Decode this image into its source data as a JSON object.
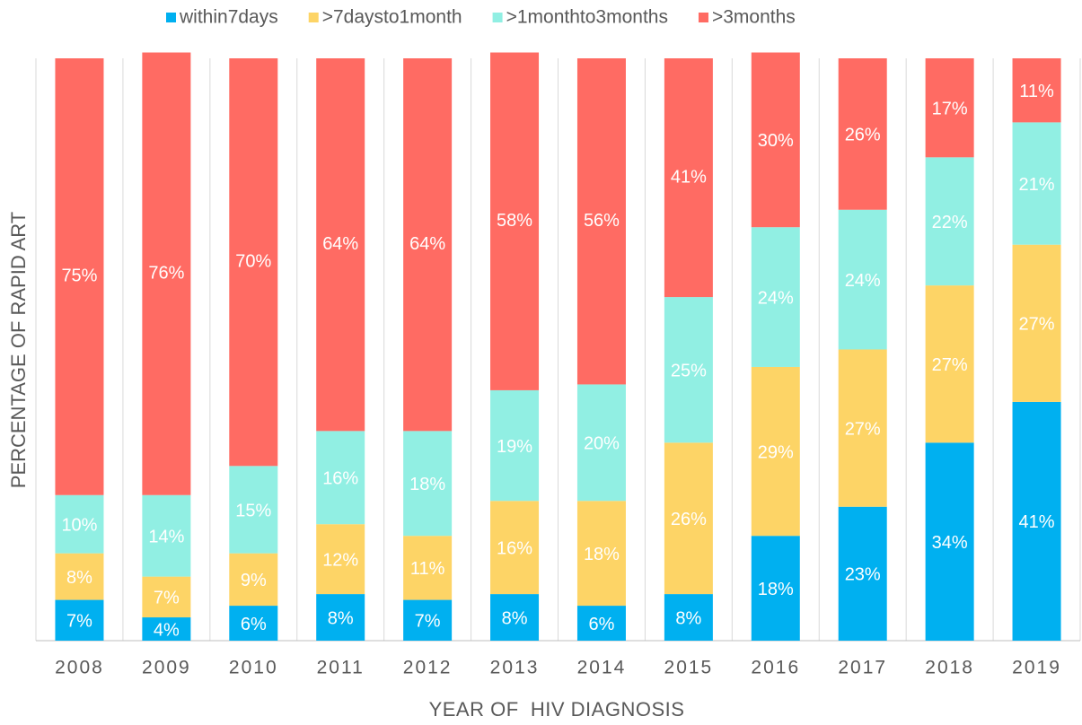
{
  "chart_data": {
    "type": "stacked_bar",
    "x_label": "YEAR OF  HIV DIAGNOSIS",
    "y_label": "PERCENTAGE OF RAPID ART",
    "categories": [
      "2008",
      "2009",
      "2010",
      "2011",
      "2012",
      "2013",
      "2014",
      "2015",
      "2016",
      "2017",
      "2018",
      "2019"
    ],
    "ylim": [
      0,
      100
    ],
    "legend": "top",
    "series": [
      {
        "name": "within7days",
        "color": "#00b0f0",
        "values": [
          7,
          4,
          6,
          8,
          7,
          8,
          6,
          8,
          18,
          23,
          34,
          41
        ],
        "value_labels": [
          "7%",
          "4%",
          "6%",
          "8%",
          "7%",
          "8%",
          "6%",
          "8%",
          "18%",
          "23%",
          "34%",
          "41%"
        ]
      },
      {
        "name": ">7daysto1month",
        "color": "#fdd466",
        "values": [
          8,
          7,
          9,
          12,
          11,
          16,
          18,
          26,
          29,
          27,
          27,
          27
        ],
        "value_labels": [
          "8%",
          "7%",
          "9%",
          "12%",
          "11%",
          "16%",
          "18%",
          "26%",
          "29%",
          "27%",
          "27%",
          "27%"
        ]
      },
      {
        "name": ">1monthto3months",
        "color": "#91efe3",
        "values": [
          10,
          14,
          15,
          16,
          18,
          19,
          20,
          25,
          24,
          24,
          22,
          21
        ],
        "value_labels": [
          "10%",
          "14%",
          "15%",
          "16%",
          "18%",
          "19%",
          "20%",
          "25%",
          "24%",
          "24%",
          "22%",
          "21%"
        ]
      },
      {
        "name": ">3months",
        "color": "#ff6b63",
        "values": [
          75,
          76,
          70,
          64,
          64,
          58,
          56,
          41,
          30,
          26,
          17,
          11
        ],
        "value_labels": [
          "75%",
          "76%",
          "70%",
          "64%",
          "64%",
          "58%",
          "56%",
          "41%",
          "30%",
          "26%",
          "17%",
          "11%"
        ]
      }
    ]
  }
}
